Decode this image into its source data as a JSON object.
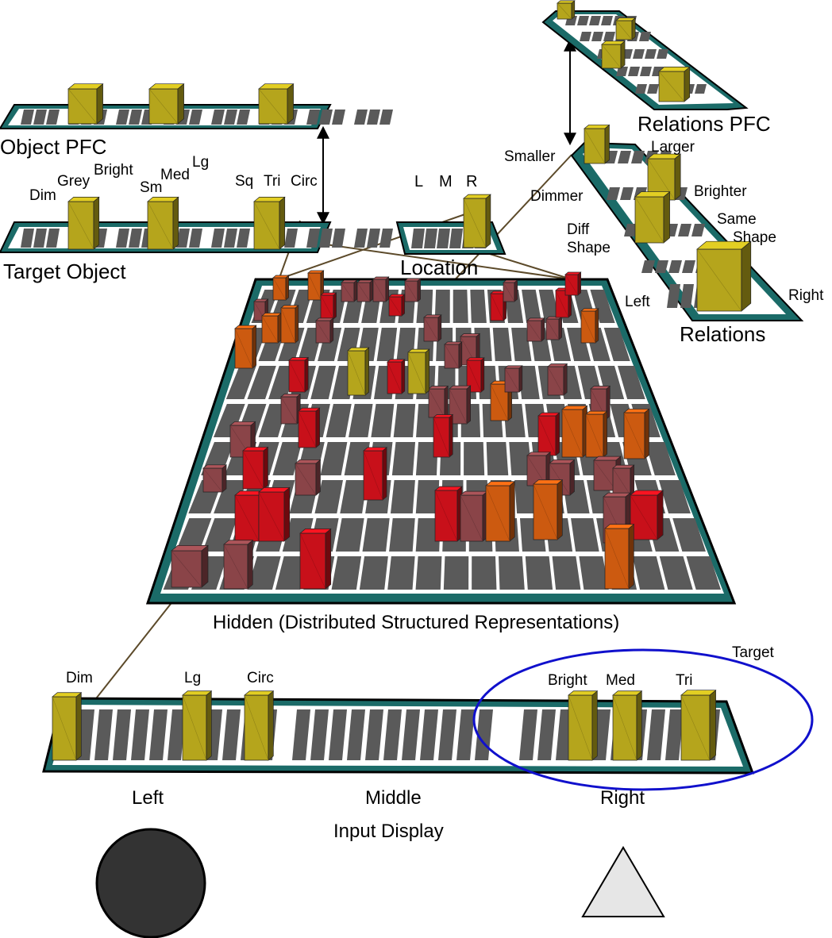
{
  "layers": {
    "object_pfc": "Object PFC",
    "target_object": "Target Object",
    "location": "Location",
    "relations_pfc": "Relations PFC",
    "relations": "Relations",
    "hidden": "Hidden (Distributed Structured Representations)",
    "input_display": "Input Display"
  },
  "target_object_units": {
    "dim": "Dim",
    "grey": "Grey",
    "bright": "Bright",
    "sm": "Sm",
    "med": "Med",
    "lg": "Lg",
    "sq": "Sq",
    "tri": "Tri",
    "circ": "Circ"
  },
  "location_units": {
    "l": "L",
    "m": "M",
    "r": "R"
  },
  "relations_units": {
    "smaller": "Smaller",
    "larger": "Larger",
    "dimmer": "Dimmer",
    "brighter": "Brighter",
    "diff_shape": [
      "Diff",
      "Shape"
    ],
    "same_shape": [
      "Same",
      "Shape"
    ],
    "left": "Left",
    "right": "Right"
  },
  "input_units": {
    "dim": "Dim",
    "lg": "Lg",
    "circ": "Circ",
    "bright": "Bright",
    "med": "Med",
    "tri": "Tri",
    "target": "Target"
  },
  "positions": {
    "left": "Left",
    "middle": "Middle",
    "right": "Right"
  },
  "stimuli": [
    {
      "shape": "circle",
      "brightness": "dim",
      "color": "#333333"
    },
    {
      "shape": "triangle",
      "brightness": "bright",
      "color": "#e6e6e6"
    }
  ],
  "colors": {
    "layer_border": "#1b6b68",
    "unit_cell": "#5a5a5a",
    "active_unit": "#b5a51c",
    "hidden_high": "#c8101a",
    "hidden_mid": "#cc5a10",
    "hidden_low": "#8a4448",
    "target_ellipse": "#1010cc"
  }
}
